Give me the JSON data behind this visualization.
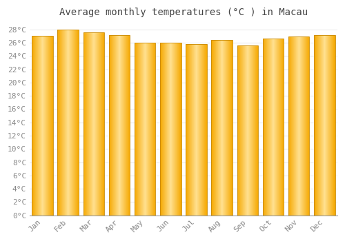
{
  "title": "Average monthly temperatures (°C ) in Macau",
  "months": [
    "Jan",
    "Feb",
    "Mar",
    "Apr",
    "May",
    "Jun",
    "Jul",
    "Aug",
    "Sep",
    "Oct",
    "Nov",
    "Dec"
  ],
  "values": [
    27.1,
    28.0,
    27.6,
    27.2,
    26.0,
    26.0,
    25.8,
    26.4,
    25.6,
    26.6,
    26.9,
    27.2
  ],
  "bar_color_center": "#FFE090",
  "bar_color_edge": "#F5A800",
  "bar_outline_color": "#C88800",
  "background_color": "#FFFFFF",
  "plot_bg_color": "#FFFFFF",
  "grid_color": "#DDDDDD",
  "title_color": "#444444",
  "tick_label_color": "#888888",
  "ylim": [
    0,
    29
  ],
  "ytick_values": [
    0,
    2,
    4,
    6,
    8,
    10,
    12,
    14,
    16,
    18,
    20,
    22,
    24,
    26,
    28
  ],
  "title_fontsize": 10,
  "tick_fontsize": 8,
  "bar_width": 0.82
}
